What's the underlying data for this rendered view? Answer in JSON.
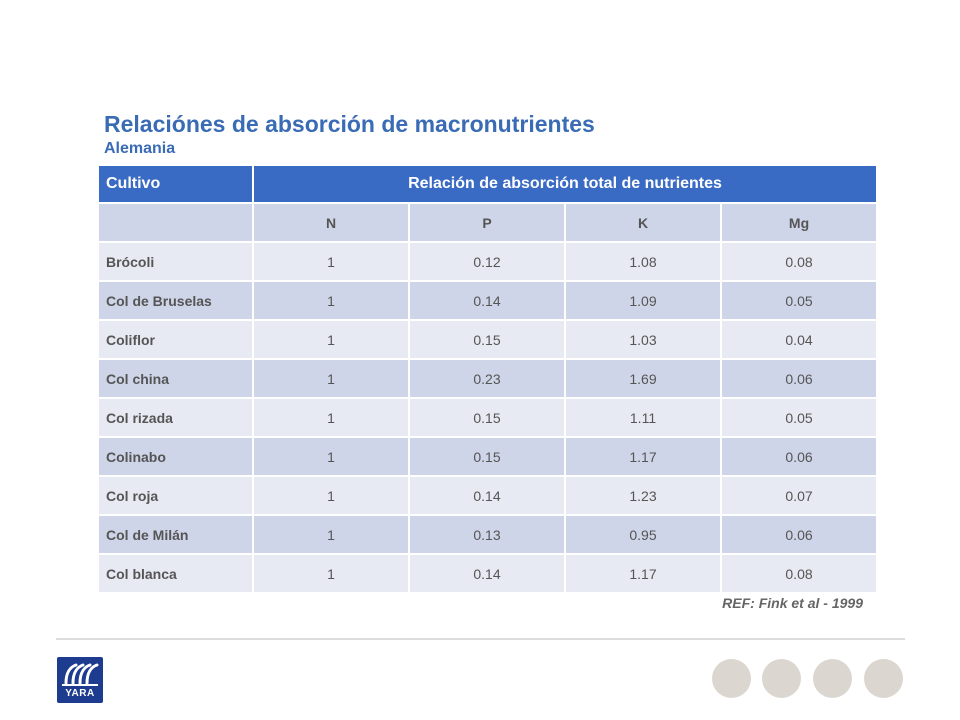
{
  "header": {
    "title": "Relaciónes de absorción de macronutrientes",
    "subtitle": "Alemania"
  },
  "table": {
    "col_header": "Cultivo",
    "group_header": "Relación de absorción total de nutrientes",
    "nutrients": [
      "N",
      "P",
      "K",
      "Mg"
    ],
    "rows": [
      {
        "crop": "Brócoli",
        "values": [
          "1",
          "0.12",
          "1.08",
          "0.08"
        ]
      },
      {
        "crop": "Col de Bruselas",
        "values": [
          "1",
          "0.14",
          "1.09",
          "0.05"
        ]
      },
      {
        "crop": "Coliflor",
        "values": [
          "1",
          "0.15",
          "1.03",
          "0.04"
        ]
      },
      {
        "crop": "Col china",
        "values": [
          "1",
          "0.23",
          "1.69",
          "0.06"
        ]
      },
      {
        "crop": "Col rizada",
        "values": [
          "1",
          "0.15",
          "1.11",
          "0.05"
        ]
      },
      {
        "crop": "Colinabo",
        "values": [
          "1",
          "0.15",
          "1.17",
          "0.06"
        ]
      },
      {
        "crop": "Col roja",
        "values": [
          "1",
          "0.14",
          "1.23",
          "0.07"
        ]
      },
      {
        "crop": "Col de Milán",
        "values": [
          "1",
          "0.13",
          "0.95",
          "0.06"
        ]
      },
      {
        "crop": "Col blanca",
        "values": [
          "1",
          "0.14",
          "1.17",
          "0.08"
        ]
      }
    ]
  },
  "reference": "REF: Fink et al - 1999",
  "logo": {
    "text": "YARA",
    "icon": "yara-viking-ship-icon"
  },
  "colors": {
    "accent": "#3a6bc4",
    "row_light": "#e8eaf3",
    "row_dark": "#cfd5e8"
  }
}
